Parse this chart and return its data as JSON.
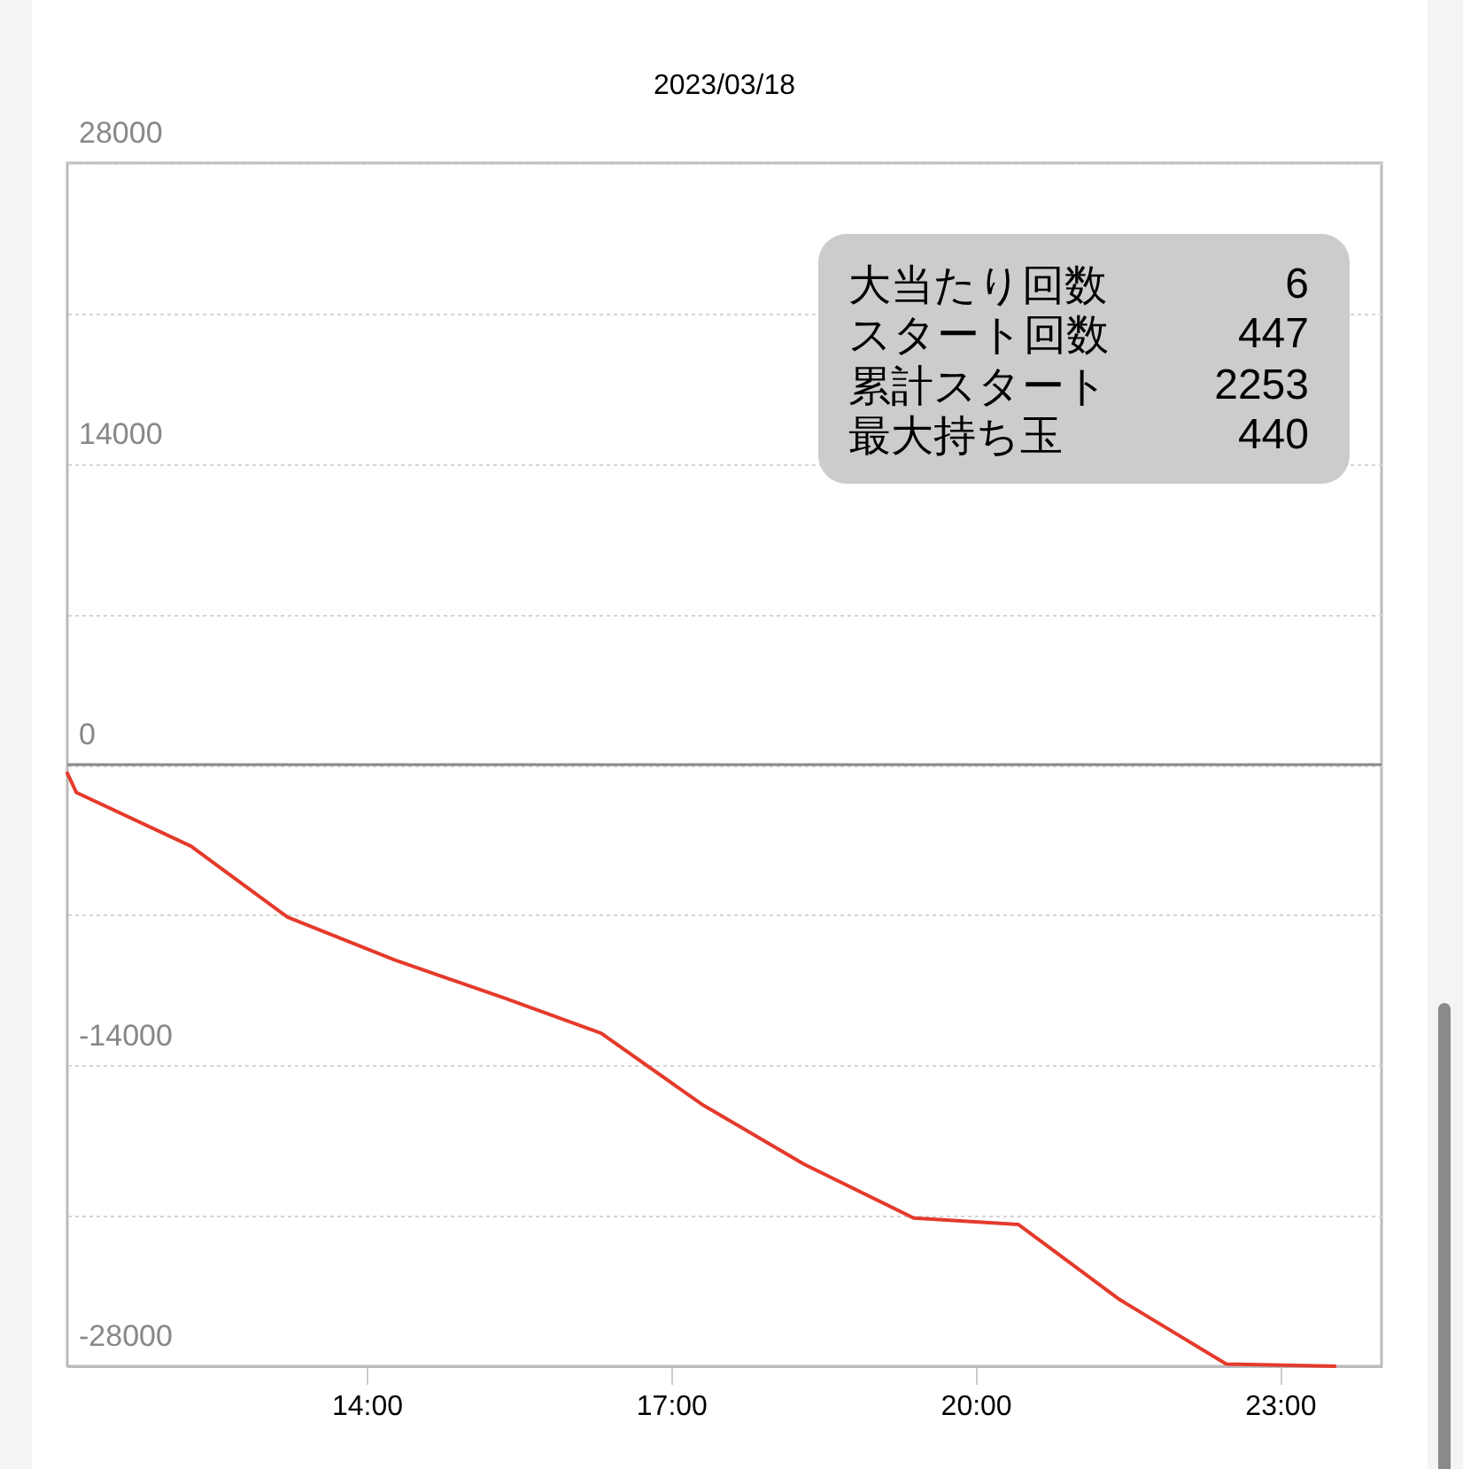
{
  "chart_data": {
    "type": "line",
    "title": "2023/03/18",
    "x": [
      11.05,
      11.14,
      12.27,
      13.22,
      14.28,
      15.38,
      16.31,
      17.3,
      18.31,
      19.39,
      20.42,
      21.42,
      22.47,
      23.54
    ],
    "series": [
      {
        "color": "#e53a2b",
        "values": [
          -400,
          -1300,
          -3800,
          -7100,
          -9100,
          -10900,
          -12500,
          -15800,
          -18600,
          -21100,
          -21400,
          -24900,
          -27900,
          -28000
        ]
      }
    ],
    "xlim": [
      11.05,
      24
    ],
    "xticks": [
      {
        "value": 14,
        "label": "14:00"
      },
      {
        "value": 17,
        "label": "17:00"
      },
      {
        "value": 20,
        "label": "20:00"
      },
      {
        "value": 23,
        "label": "23:00"
      }
    ],
    "ylim": [
      -28000,
      28000
    ],
    "yticks": [
      -28000,
      {
        "value": -21000,
        "label": null
      },
      -14000,
      {
        "value": -7000,
        "label": null
      },
      0,
      {
        "value": 7000,
        "label": null
      },
      14000,
      {
        "value": 21000,
        "label": null
      },
      28000
    ],
    "grid": "y",
    "ref_lines": [
      {
        "axis": "y",
        "value": 0,
        "color": "#888888"
      }
    ],
    "annotations": [
      "大当たり回数",
      "6",
      "スタート回数",
      "447",
      "累計スタート",
      "2253",
      "最大持ち玉",
      "440"
    ]
  }
}
